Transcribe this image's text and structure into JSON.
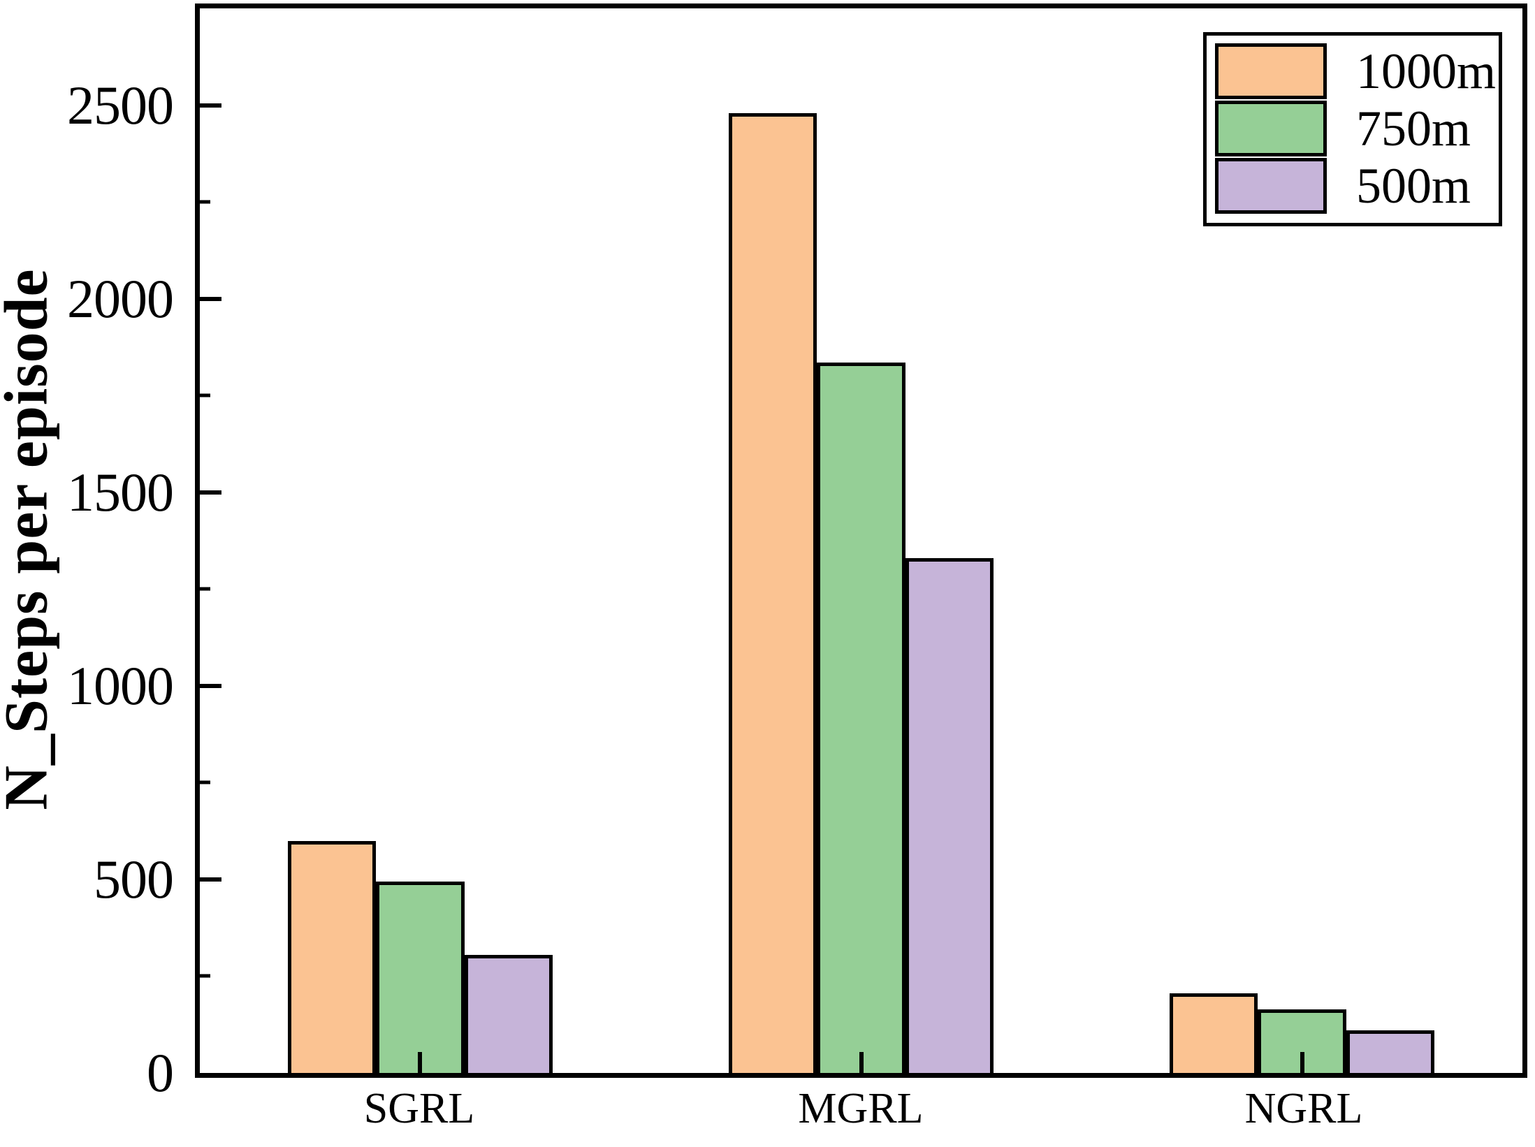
{
  "chart_data": {
    "type": "bar",
    "title": "",
    "xlabel": "",
    "ylabel": "N_Steps per episode",
    "categories": [
      "SGRL",
      "MGRL",
      "NGRL"
    ],
    "series": [
      {
        "name": "1000m",
        "color": "#FBC392",
        "values": [
          600,
          2480,
          205
        ]
      },
      {
        "name": "750m",
        "color": "#95CF96",
        "values": [
          495,
          1835,
          165
        ]
      },
      {
        "name": "500m",
        "color": "#C6B4D9",
        "values": [
          305,
          1330,
          110
        ]
      }
    ],
    "ylim": [
      0,
      2750
    ],
    "yticks": [
      0,
      500,
      1000,
      1500,
      2000,
      2500
    ],
    "yticks_minor": [
      250,
      750,
      1250,
      1750,
      2250
    ],
    "ytick_labels": [
      "0",
      "500",
      "1000",
      "1500",
      "2000",
      "2500"
    ],
    "bar_edge_color": "#000000",
    "grid": false,
    "legend_position": "upper right",
    "tick_direction": "in"
  }
}
